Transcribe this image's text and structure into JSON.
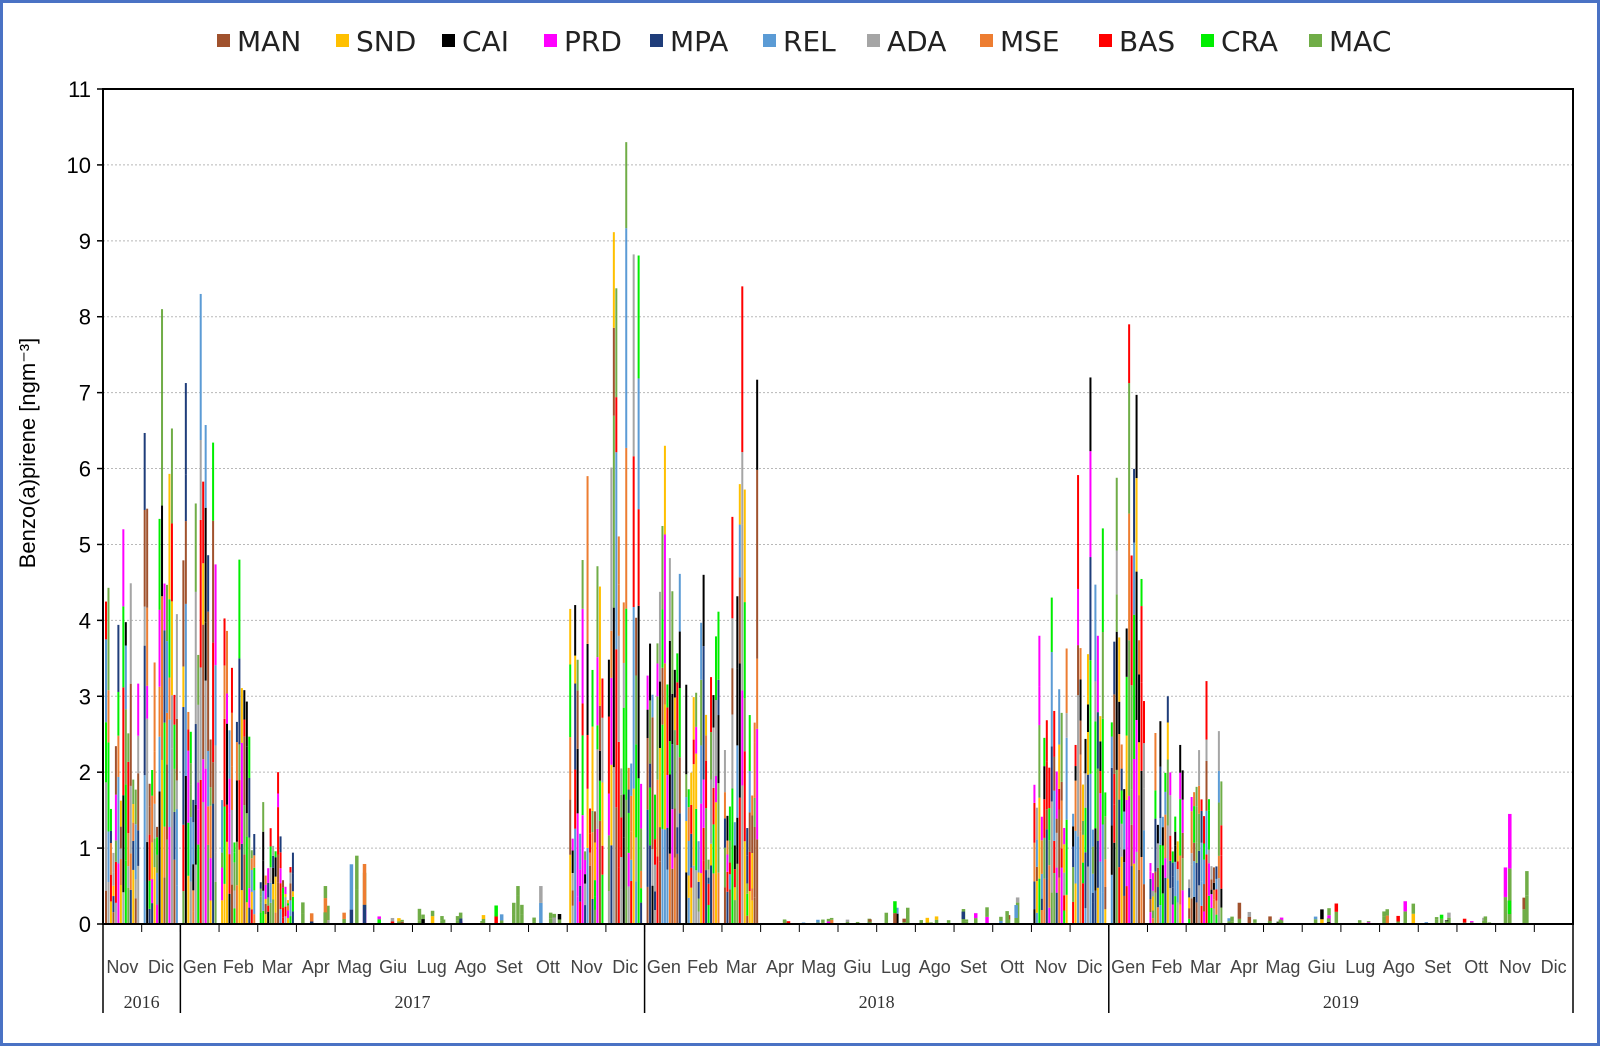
{
  "chart_data": {
    "type": "bar",
    "stacked": true,
    "ylabel": "Benzo(a)pirene  [ngm⁻³]",
    "ylim": [
      0,
      11
    ],
    "yticks": [
      0,
      1,
      2,
      3,
      4,
      5,
      6,
      7,
      8,
      9,
      10,
      11
    ],
    "grid": "horizontal dotted",
    "legend_position": "top",
    "series": [
      {
        "name": "MAN",
        "color": "#a0522d"
      },
      {
        "name": "SND",
        "color": "#ffc000"
      },
      {
        "name": "CAI",
        "color": "#000000"
      },
      {
        "name": "PRD",
        "color": "#ff00ff"
      },
      {
        "name": "MPA",
        "color": "#1f3d7a"
      },
      {
        "name": "REL",
        "color": "#5b9bd5"
      },
      {
        "name": "ADA",
        "color": "#a5a5a5"
      },
      {
        "name": "MSE",
        "color": "#ed7d31"
      },
      {
        "name": "BAS",
        "color": "#ff0000"
      },
      {
        "name": "CRA",
        "color": "#00ee00"
      },
      {
        "name": "MAC",
        "color": "#70ad47"
      }
    ],
    "months": [
      "Nov",
      "Dic",
      "Gen",
      "Feb",
      "Mar",
      "Apr",
      "Mag",
      "Giu",
      "Lug",
      "Ago",
      "Set",
      "Ott",
      "Nov",
      "Dic",
      "Gen",
      "Feb",
      "Mar",
      "Apr",
      "Mag",
      "Giu",
      "Lug",
      "Ago",
      "Set",
      "Ott",
      "Nov",
      "Dic",
      "Gen",
      "Feb",
      "Mar",
      "Apr",
      "Mag",
      "Giu",
      "Lug",
      "Ago",
      "Set",
      "Ott",
      "Nov",
      "Dic"
    ],
    "years": [
      {
        "label": "2016",
        "first_month": 0,
        "last_month": 1
      },
      {
        "label": "2017",
        "first_month": 2,
        "last_month": 13
      },
      {
        "label": "2018",
        "first_month": 14,
        "last_month": 25
      },
      {
        "label": "2019",
        "first_month": 26,
        "last_month": 37
      }
    ],
    "monthly_max": [
      5.2,
      8.1,
      8.3,
      4.8,
      2.0,
      0.5,
      0.9,
      0.1,
      0.2,
      0.15,
      0.5,
      0.5,
      5.9,
      10.3,
      6.3,
      4.6,
      8.4,
      0.06,
      0.08,
      0.07,
      0.3,
      0.1,
      0.22,
      0.35,
      4.3,
      7.2,
      7.9,
      3.0,
      3.2,
      0.28,
      0.1,
      0.27,
      0.05,
      0.3,
      0.15,
      0.1,
      1.45,
      0.0
    ]
  }
}
